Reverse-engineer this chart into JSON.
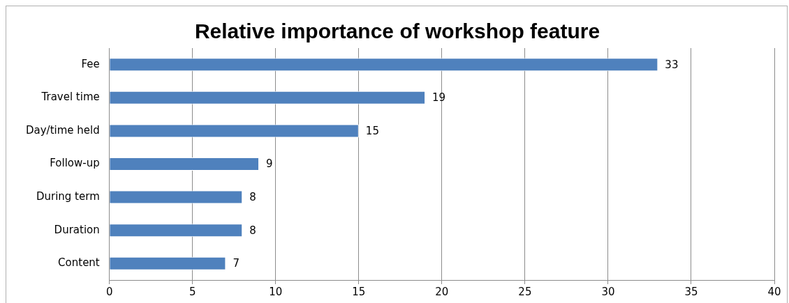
{
  "chart_data": {
    "type": "bar",
    "title": "Relative importance of workshop feature",
    "orientation": "horizontal",
    "categories": [
      "Fee",
      "Travel time",
      "Day/time held",
      "Follow-up",
      "During term",
      "Duration",
      "Content"
    ],
    "values": [
      33,
      19,
      15,
      9,
      8,
      8,
      7
    ],
    "color": "#4f81bd",
    "xlim": [
      0,
      40
    ],
    "xticks": [
      0,
      5,
      10,
      15,
      20,
      25,
      30,
      35,
      40
    ],
    "grid": "x",
    "data_labels": true
  }
}
